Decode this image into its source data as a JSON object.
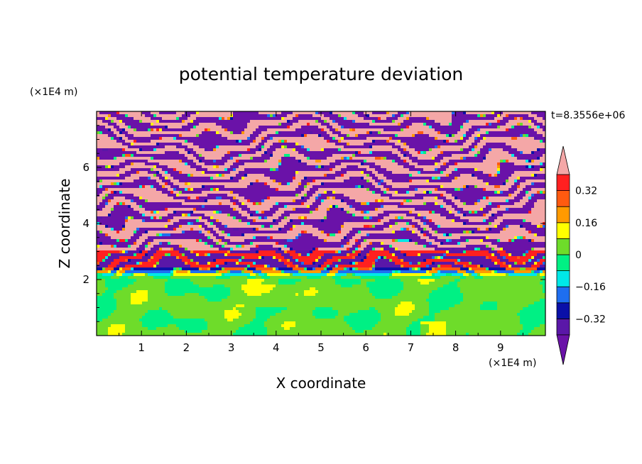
{
  "chart_data": {
    "type": "heatmap",
    "title": "potential temperature deviation",
    "xlabel": "X coordinate",
    "ylabel": "Z coordinate",
    "x_unit": "(×1E4 m)",
    "y_unit": "(×1E4 m)",
    "time_label": "t=8.3556e+06",
    "xlim": [
      0,
      10
    ],
    "ylim": [
      0,
      8
    ],
    "x_ticks": [
      1,
      2,
      3,
      4,
      5,
      6,
      7,
      8,
      9
    ],
    "y_ticks": [
      2,
      4,
      6
    ],
    "contour_levels": [
      -0.4,
      -0.32,
      -0.24,
      -0.16,
      -0.08,
      0,
      0.08,
      0.16,
      0.24,
      0.32,
      0.4
    ],
    "colorbar_tick_labels": [
      "0.32",
      "0.16",
      "0",
      "−0.16",
      "−0.32"
    ],
    "colorbar_tick_values": [
      0.32,
      0.16,
      0,
      -0.16,
      -0.32
    ],
    "colors": {
      "above_max": "#f4a7a7",
      "bands_top_to_bottom": [
        "#ff2020",
        "#ff5a10",
        "#ff9a00",
        "#ffff00",
        "#6edc2a",
        "#00f084",
        "#00e8e8",
        "#1e6ef0",
        "#0a10a8",
        "#5a17a8"
      ],
      "below_min": "#6a12a8"
    }
  }
}
